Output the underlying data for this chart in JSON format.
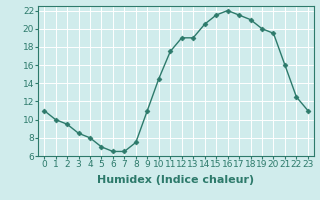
{
  "x": [
    0,
    1,
    2,
    3,
    4,
    5,
    6,
    7,
    8,
    9,
    10,
    11,
    12,
    13,
    14,
    15,
    16,
    17,
    18,
    19,
    20,
    21,
    22,
    23
  ],
  "y": [
    11,
    10,
    9.5,
    8.5,
    8,
    7,
    6.5,
    6.5,
    7.5,
    11,
    14.5,
    17.5,
    19,
    19,
    20.5,
    21.5,
    22,
    21.5,
    21,
    20,
    19.5,
    16,
    12.5,
    11
  ],
  "line_color": "#2d7a6b",
  "marker": "D",
  "marker_size": 2.5,
  "bg_color": "#d0ecec",
  "grid_color": "#ffffff",
  "grid_minor_color": "#e8f5f5",
  "xlabel": "Humidex (Indice chaleur)",
  "xlim": [
    -0.5,
    23.5
  ],
  "ylim": [
    6,
    22.5
  ],
  "yticks": [
    6,
    8,
    10,
    12,
    14,
    16,
    18,
    20,
    22
  ],
  "xticks": [
    0,
    1,
    2,
    3,
    4,
    5,
    6,
    7,
    8,
    9,
    10,
    11,
    12,
    13,
    14,
    15,
    16,
    17,
    18,
    19,
    20,
    21,
    22,
    23
  ],
  "tick_fontsize": 6.5,
  "xlabel_fontsize": 8,
  "line_width": 1.0,
  "spine_color": "#2d7a6b"
}
